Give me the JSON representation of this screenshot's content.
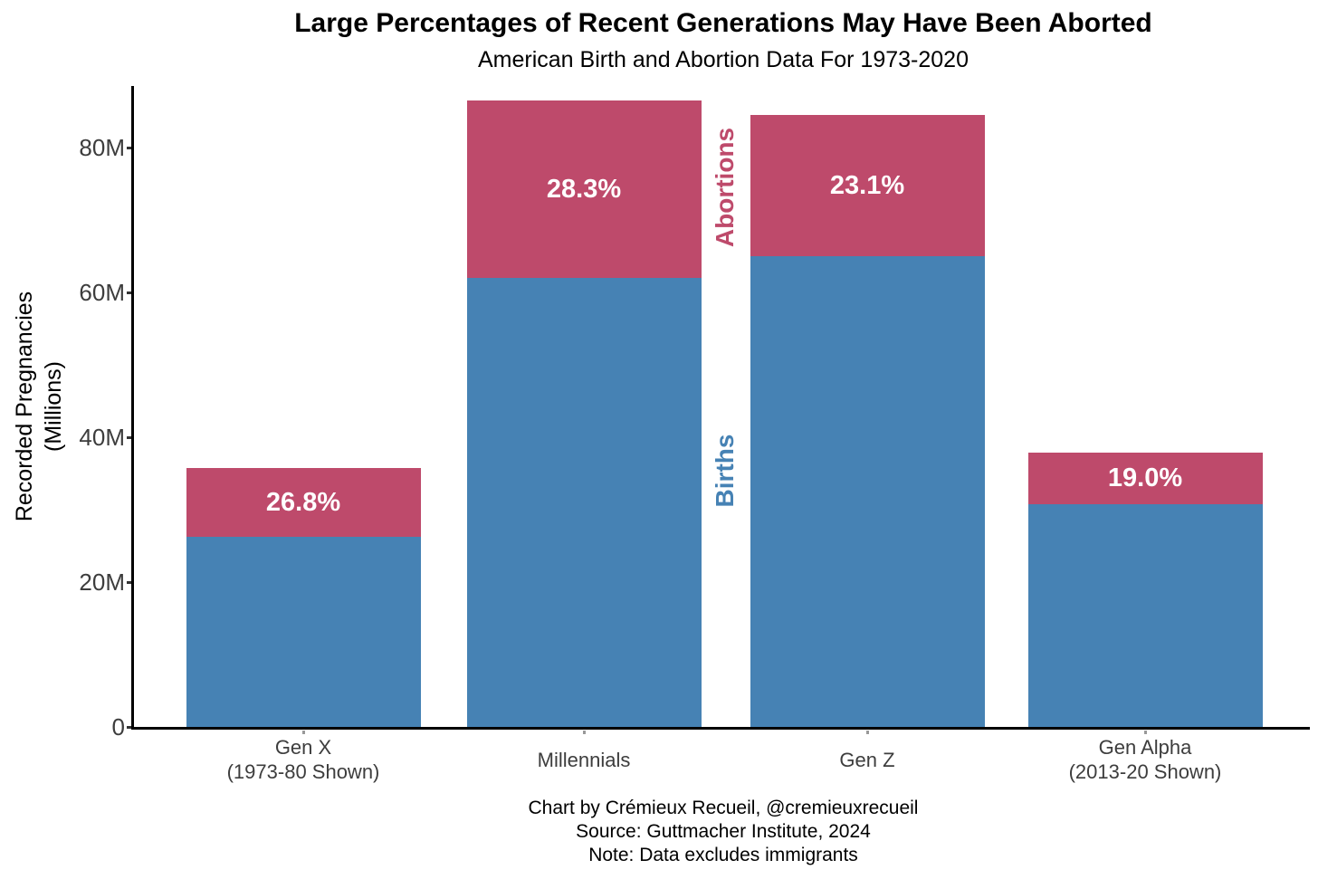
{
  "chart_data": {
    "type": "bar",
    "stacked": true,
    "title": "Large Percentages of Recent Generations May Have Been Aborted",
    "subtitle": "American Birth and Abortion Data For 1973-2020",
    "ylabel_line1": "Recorded Pregnancies",
    "ylabel_line2": "(Millions)",
    "ylim": [
      0,
      88.5
    ],
    "grid": false,
    "legend": "none (in-plot rotated labels)",
    "categories": [
      {
        "key": "gen-x",
        "line1": "Gen X",
        "line2": "(1973-80 Shown)"
      },
      {
        "key": "millennials",
        "line1": "Millennials",
        "line2": ""
      },
      {
        "key": "gen-z",
        "line1": "Gen Z",
        "line2": ""
      },
      {
        "key": "gen-alpha",
        "line1": "Gen Alpha",
        "line2": "(2013-20 Shown)"
      }
    ],
    "series": [
      {
        "name": "Births",
        "color": "#4682B4",
        "values": [
          26.2,
          62.0,
          65.0,
          30.7
        ]
      },
      {
        "name": "Abortions",
        "color": "#BE4A6B",
        "values": [
          9.6,
          24.5,
          19.5,
          7.2
        ]
      }
    ],
    "totals": [
      35.8,
      86.5,
      84.5,
      37.9
    ],
    "abortion_pct_labels": [
      "26.8%",
      "28.3%",
      "23.1%",
      "19.0%"
    ],
    "y_ticks": [
      {
        "label": "0",
        "value": 0
      },
      {
        "label": "20M",
        "value": 20
      },
      {
        "label": "40M",
        "value": 40
      },
      {
        "label": "60M",
        "value": 60
      },
      {
        "label": "80M",
        "value": 80
      }
    ],
    "annotations": [
      {
        "text": "Abortions",
        "color": "#BE4A6B"
      },
      {
        "text": "Births",
        "color": "#4682B4"
      }
    ],
    "captions": [
      "Chart by Crémieux Recueil, @cremieuxrecueil",
      "Source: Guttmacher Institute, 2024",
      "Note: Data excludes immigrants"
    ]
  }
}
